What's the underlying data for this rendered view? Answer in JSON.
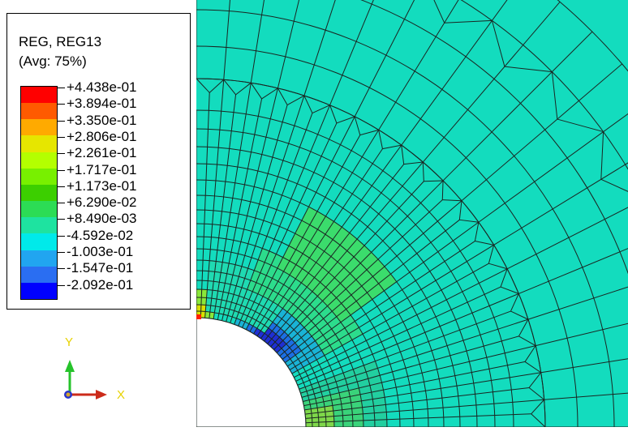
{
  "legend": {
    "title_line1": "REG, REG13",
    "title_line2": "(Avg: 75%)",
    "labels": [
      "+4.438e-01",
      "+3.894e-01",
      "+3.350e-01",
      "+2.806e-01",
      "+2.261e-01",
      "+1.717e-01",
      "+1.173e-01",
      "+6.290e-02",
      "+8.490e-03",
      "-4.592e-02",
      "-1.003e-01",
      "-1.547e-01",
      "-2.092e-01"
    ],
    "colors": [
      "#ff0000",
      "#ff5a00",
      "#ffaa00",
      "#e6e600",
      "#b4ff00",
      "#78f000",
      "#3ccf00",
      "#2cdc55",
      "#1ee3a0",
      "#00eaea",
      "#21a5f0",
      "#2a6ef2",
      "#0000ff"
    ]
  },
  "contour": {
    "background_color": "#13dcbe",
    "mesh_color": "#1a2622"
  },
  "triad": {
    "x_label": "X",
    "y_label": "Y",
    "x_color": "#cc2b1a",
    "y_color": "#26c32b",
    "z_color": "#2a36cc"
  }
}
